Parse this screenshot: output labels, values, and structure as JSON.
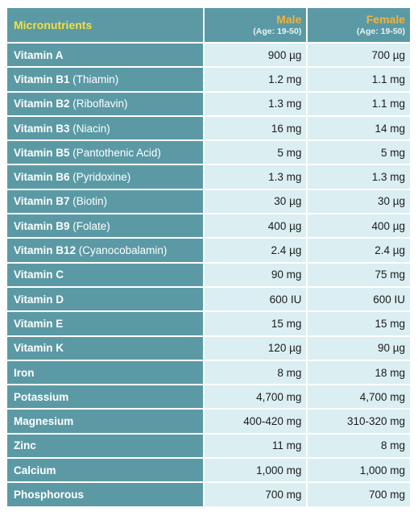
{
  "header": {
    "title": "Micronutrients",
    "male": {
      "label": "Male",
      "age": "(Age: 19-50)"
    },
    "female": {
      "label": "Female",
      "age": "(Age: 19-50)"
    }
  },
  "rows": [
    {
      "name": "Vitamin A",
      "sub": "",
      "male": "900 µg",
      "female": "700 µg"
    },
    {
      "name": "Vitamin B1",
      "sub": " (Thiamin)",
      "male": "1.2 mg",
      "female": "1.1 mg"
    },
    {
      "name": "Vitamin B2",
      "sub": " (Riboflavin)",
      "male": "1.3 mg",
      "female": "1.1 mg"
    },
    {
      "name": "Vitamin B3",
      "sub": " (Niacin)",
      "male": "16 mg",
      "female": "14 mg"
    },
    {
      "name": "Vitamin B5",
      "sub": " (Pantothenic Acid)",
      "male": "5 mg",
      "female": "5 mg"
    },
    {
      "name": "Vitamin B6",
      "sub": " (Pyridoxine)",
      "male": "1.3 mg",
      "female": "1.3 mg"
    },
    {
      "name": "Vitamin B7",
      "sub": " (Biotin)",
      "male": "30 µg",
      "female": "30 µg"
    },
    {
      "name": "Vitamin B9",
      "sub": " (Folate)",
      "male": "400 µg",
      "female": "400 µg"
    },
    {
      "name": "Vitamin B12",
      "sub": " (Cyanocobalamin)",
      "male": "2.4 µg",
      "female": "2.4 µg"
    },
    {
      "name": "Vitamin C",
      "sub": "",
      "male": "90 mg",
      "female": "75 mg"
    },
    {
      "name": "Vitamin D",
      "sub": "",
      "male": "600 IU",
      "female": "600 IU"
    },
    {
      "name": "Vitamin E",
      "sub": "",
      "male": "15 mg",
      "female": "15 mg"
    },
    {
      "name": "Vitamin K",
      "sub": "",
      "male": "120 µg",
      "female": "90 µg"
    },
    {
      "name": "Iron",
      "sub": "",
      "male": "8 mg",
      "female": "18 mg"
    },
    {
      "name": "Potassium",
      "sub": "",
      "male": "4,700 mg",
      "female": "4,700 mg"
    },
    {
      "name": "Magnesium",
      "sub": "",
      "male": "400-420 mg",
      "female": "310-320 mg"
    },
    {
      "name": "Zinc",
      "sub": "",
      "male": "11 mg",
      "female": "8 mg"
    },
    {
      "name": "Calcium",
      "sub": "",
      "male": "1,000 mg",
      "female": "1,000 mg"
    },
    {
      "name": "Phosphorous",
      "sub": "",
      "male": "700 mg",
      "female": "700 mg"
    }
  ],
  "colors": {
    "header_bg": "#5b9aa5",
    "title_yellow": "#f5df3a",
    "column_orange": "#f0b33e",
    "value_bg": "#dbeef2"
  }
}
